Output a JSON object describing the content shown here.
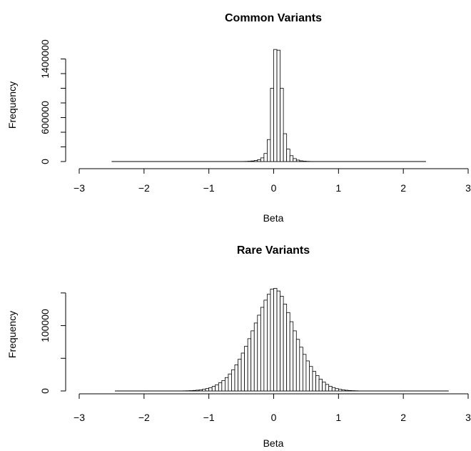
{
  "chart_data": [
    {
      "type": "bar",
      "title": "Common Variants",
      "xlabel": "Beta",
      "ylabel": "Frequency",
      "xlim": [
        -3,
        3
      ],
      "ylim": [
        0,
        1600000
      ],
      "xticks": [
        "−3",
        "−2",
        "−1",
        "0",
        "1",
        "2",
        "3"
      ],
      "yticks": [
        "0",
        "600000",
        "1400000"
      ],
      "y_ticks_unlabeled": [
        200000,
        400000,
        800000,
        1000000,
        1200000
      ],
      "bin_width": 0.05,
      "data_range": [
        -2.5,
        2.35
      ],
      "bins": [
        {
          "x0": -0.5,
          "value": 1000
        },
        {
          "x0": -0.45,
          "value": 2000
        },
        {
          "x0": -0.4,
          "value": 4000
        },
        {
          "x0": -0.35,
          "value": 8000
        },
        {
          "x0": -0.3,
          "value": 15000
        },
        {
          "x0": -0.25,
          "value": 25000
        },
        {
          "x0": -0.2,
          "value": 50000
        },
        {
          "x0": -0.15,
          "value": 110000
        },
        {
          "x0": -0.1,
          "value": 300000
        },
        {
          "x0": -0.05,
          "value": 1000000
        },
        {
          "x0": 0.0,
          "value": 1530000
        },
        {
          "x0": 0.05,
          "value": 1520000
        },
        {
          "x0": 0.1,
          "value": 1000000
        },
        {
          "x0": 0.15,
          "value": 380000
        },
        {
          "x0": 0.2,
          "value": 170000
        },
        {
          "x0": 0.25,
          "value": 80000
        },
        {
          "x0": 0.3,
          "value": 40000
        },
        {
          "x0": 0.35,
          "value": 20000
        },
        {
          "x0": 0.4,
          "value": 10000
        },
        {
          "x0": 0.45,
          "value": 5000
        },
        {
          "x0": 0.5,
          "value": 2500
        },
        {
          "x0": 0.55,
          "value": 1200
        }
      ]
    },
    {
      "type": "bar",
      "title": "Rare Variants",
      "xlabel": "Beta",
      "ylabel": "Frequency",
      "xlim": [
        -3,
        3
      ],
      "ylim": [
        0,
        175000
      ],
      "xticks": [
        "−3",
        "−2",
        "−1",
        "0",
        "1",
        "2",
        "3"
      ],
      "yticks": [
        "0",
        "100000"
      ],
      "y_ticks_unlabeled": [
        50000,
        150000
      ],
      "bin_width": 0.05,
      "data_range": [
        -2.45,
        2.7
      ],
      "bins": [
        {
          "x0": -1.4,
          "value": 200
        },
        {
          "x0": -1.35,
          "value": 300
        },
        {
          "x0": -1.3,
          "value": 500
        },
        {
          "x0": -1.25,
          "value": 800
        },
        {
          "x0": -1.2,
          "value": 1200
        },
        {
          "x0": -1.15,
          "value": 1800
        },
        {
          "x0": -1.1,
          "value": 2600
        },
        {
          "x0": -1.05,
          "value": 3700
        },
        {
          "x0": -1.0,
          "value": 5000
        },
        {
          "x0": -0.95,
          "value": 7000
        },
        {
          "x0": -0.9,
          "value": 9500
        },
        {
          "x0": -0.85,
          "value": 12500
        },
        {
          "x0": -0.8,
          "value": 16000
        },
        {
          "x0": -0.75,
          "value": 20500
        },
        {
          "x0": -0.7,
          "value": 26000
        },
        {
          "x0": -0.65,
          "value": 32500
        },
        {
          "x0": -0.6,
          "value": 40000
        },
        {
          "x0": -0.55,
          "value": 48500
        },
        {
          "x0": -0.5,
          "value": 58000
        },
        {
          "x0": -0.45,
          "value": 68500
        },
        {
          "x0": -0.4,
          "value": 80000
        },
        {
          "x0": -0.35,
          "value": 92000
        },
        {
          "x0": -0.3,
          "value": 104000
        },
        {
          "x0": -0.25,
          "value": 116000
        },
        {
          "x0": -0.2,
          "value": 128000
        },
        {
          "x0": -0.15,
          "value": 139000
        },
        {
          "x0": -0.1,
          "value": 148000
        },
        {
          "x0": -0.05,
          "value": 156000
        },
        {
          "x0": 0.0,
          "value": 157000
        },
        {
          "x0": 0.05,
          "value": 153000
        },
        {
          "x0": 0.1,
          "value": 145000
        },
        {
          "x0": 0.15,
          "value": 133000
        },
        {
          "x0": 0.2,
          "value": 120000
        },
        {
          "x0": 0.25,
          "value": 106000
        },
        {
          "x0": 0.3,
          "value": 92000
        },
        {
          "x0": 0.35,
          "value": 79000
        },
        {
          "x0": 0.4,
          "value": 67000
        },
        {
          "x0": 0.45,
          "value": 56000
        },
        {
          "x0": 0.5,
          "value": 46000
        },
        {
          "x0": 0.55,
          "value": 37500
        },
        {
          "x0": 0.6,
          "value": 30000
        },
        {
          "x0": 0.65,
          "value": 23500
        },
        {
          "x0": 0.7,
          "value": 18000
        },
        {
          "x0": 0.75,
          "value": 13500
        },
        {
          "x0": 0.8,
          "value": 10000
        },
        {
          "x0": 0.85,
          "value": 7200
        },
        {
          "x0": 0.9,
          "value": 5200
        },
        {
          "x0": 0.95,
          "value": 3600
        },
        {
          "x0": 1.0,
          "value": 2500
        },
        {
          "x0": 1.05,
          "value": 1700
        },
        {
          "x0": 1.1,
          "value": 1100
        },
        {
          "x0": 1.15,
          "value": 700
        },
        {
          "x0": 1.2,
          "value": 450
        },
        {
          "x0": 1.25,
          "value": 280
        }
      ]
    }
  ]
}
